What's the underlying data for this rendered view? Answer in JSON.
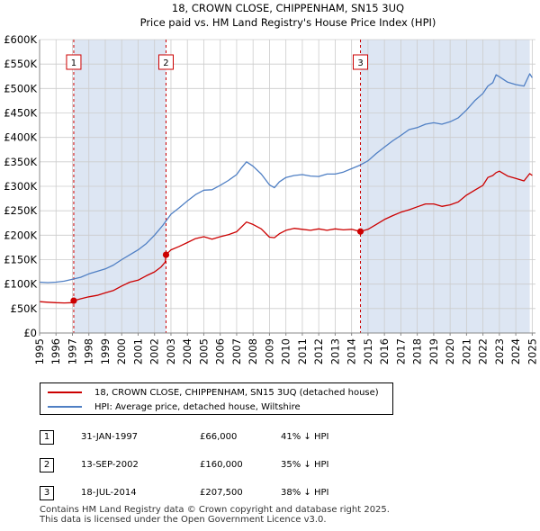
{
  "colors": {
    "price": "#cc0000",
    "hpi": "#4f7fc4",
    "band": "#dde6f3",
    "vline": "#cc0000",
    "grid": "#cccccc"
  },
  "chart_data": {
    "type": "line",
    "title": "18, CROWN CLOSE, CHIPPENHAM, SN15 3UQ",
    "subtitle": "Price paid vs. HM Land Registry's House Price Index (HPI)",
    "xlim": [
      1995,
      2025.2
    ],
    "ylim": [
      0,
      600000
    ],
    "x_ticks": [
      "1995",
      "1996",
      "1997",
      "1998",
      "1999",
      "2000",
      "2001",
      "2002",
      "2003",
      "2004",
      "2005",
      "2006",
      "2007",
      "2008",
      "2009",
      "2010",
      "2011",
      "2012",
      "2013",
      "2014",
      "2015",
      "2016",
      "2017",
      "2018",
      "2019",
      "2020",
      "2021",
      "2022",
      "2023",
      "2024",
      "2025"
    ],
    "y_ticks": [
      {
        "value": 0,
        "label": "£0"
      },
      {
        "value": 50000,
        "label": "£50K"
      },
      {
        "value": 100000,
        "label": "£100K"
      },
      {
        "value": 150000,
        "label": "£150K"
      },
      {
        "value": 200000,
        "label": "£200K"
      },
      {
        "value": 250000,
        "label": "£250K"
      },
      {
        "value": 300000,
        "label": "£300K"
      },
      {
        "value": 350000,
        "label": "£350K"
      },
      {
        "value": 400000,
        "label": "£400K"
      },
      {
        "value": 450000,
        "label": "£450K"
      },
      {
        "value": 500000,
        "label": "£500K"
      },
      {
        "value": 550000,
        "label": "£550K"
      },
      {
        "value": 600000,
        "label": "£600K"
      }
    ],
    "shaded_bands": [
      {
        "from": 1997.08,
        "to": 2002.7
      },
      {
        "from": 2014.54,
        "to": 2024.85
      }
    ],
    "sales": [
      {
        "label": "1",
        "x": 1997.08,
        "y": 66000
      },
      {
        "label": "2",
        "x": 2002.7,
        "y": 160000
      },
      {
        "label": "3",
        "x": 2014.54,
        "y": 207500
      }
    ],
    "series": [
      {
        "name": "18, CROWN CLOSE, CHIPPENHAM, SN15 3UQ (detached house)",
        "color": "#cc0000",
        "x": [
          1995,
          1995.5,
          1996,
          1996.5,
          1997.0,
          1997.08,
          1997.5,
          1998,
          1998.5,
          1999,
          1999.5,
          2000,
          2000.5,
          2001,
          2001.5,
          2002,
          2002.4,
          2002.65,
          2002.7,
          2003,
          2003.5,
          2004,
          2004.5,
          2005,
          2005.5,
          2006,
          2006.5,
          2007,
          2007.3,
          2007.6,
          2008,
          2008.5,
          2009,
          2009.3,
          2009.6,
          2010,
          2010.5,
          2011,
          2011.5,
          2012,
          2012.5,
          2013,
          2013.5,
          2014,
          2014.54,
          2015,
          2015.5,
          2016,
          2016.5,
          2017,
          2017.5,
          2018,
          2018.5,
          2019,
          2019.5,
          2020,
          2020.5,
          2021,
          2021.5,
          2022,
          2022.3,
          2022.6,
          2022.8,
          2023,
          2023.5,
          2024,
          2024.5,
          2024.85,
          2025
        ],
        "values": [
          64000,
          63000,
          62000,
          61500,
          62000,
          66000,
          70000,
          74000,
          77000,
          82000,
          87000,
          96000,
          104000,
          108000,
          117000,
          125000,
          135000,
          145000,
          160000,
          170000,
          177000,
          185000,
          193000,
          197000,
          192000,
          197000,
          201000,
          207000,
          217000,
          227000,
          222000,
          213000,
          196000,
          195000,
          203000,
          210000,
          214000,
          212000,
          210000,
          213000,
          210000,
          213000,
          211000,
          212000,
          207500,
          212000,
          222000,
          232000,
          240000,
          247000,
          252000,
          258000,
          264000,
          264000,
          259000,
          262000,
          268000,
          282000,
          292000,
          302000,
          318000,
          322000,
          328000,
          331000,
          321000,
          316000,
          311000,
          326000,
          322000
        ]
      },
      {
        "name": "HPI: Average price, detached house, Wiltshire",
        "color": "#4f7fc4",
        "x": [
          1995,
          1995.5,
          1996,
          1996.5,
          1997,
          1997.5,
          1998,
          1998.5,
          1999,
          1999.5,
          2000,
          2000.5,
          2001,
          2001.5,
          2002,
          2002.5,
          2003,
          2003.5,
          2004,
          2004.5,
          2005,
          2005.5,
          2006,
          2006.5,
          2007,
          2007.3,
          2007.6,
          2008,
          2008.5,
          2009,
          2009.3,
          2009.6,
          2010,
          2010.5,
          2011,
          2011.5,
          2012,
          2012.5,
          2013,
          2013.5,
          2014,
          2014.5,
          2015,
          2015.5,
          2016,
          2016.5,
          2017,
          2017.5,
          2018,
          2018.5,
          2019,
          2019.5,
          2020,
          2020.5,
          2021,
          2021.5,
          2022,
          2022.3,
          2022.6,
          2022.8,
          2023,
          2023.5,
          2024,
          2024.5,
          2024.85,
          2025
        ],
        "values": [
          104000,
          103000,
          104000,
          106000,
          110000,
          114000,
          121000,
          126000,
          131000,
          139000,
          150000,
          160000,
          170000,
          183000,
          200000,
          220000,
          243000,
          256000,
          270000,
          283000,
          292000,
          293000,
          302000,
          312000,
          324000,
          338000,
          350000,
          341000,
          325000,
          303000,
          297000,
          309000,
          318000,
          322000,
          324000,
          321000,
          320000,
          325000,
          325000,
          329000,
          336000,
          343000,
          352000,
          367000,
          380000,
          393000,
          404000,
          416000,
          420000,
          427000,
          430000,
          427000,
          432000,
          440000,
          456000,
          475000,
          490000,
          505000,
          512000,
          528000,
          524000,
          513000,
          508000,
          505000,
          530000,
          522000
        ]
      }
    ]
  },
  "legend": {
    "price": "18, CROWN CLOSE, CHIPPENHAM, SN15 3UQ (detached house)",
    "hpi": "HPI: Average price, detached house, Wiltshire"
  },
  "transactions": [
    {
      "num": "1",
      "date": "31-JAN-1997",
      "price": "£66,000",
      "delta": "41% ↓ HPI"
    },
    {
      "num": "2",
      "date": "13-SEP-2002",
      "price": "£160,000",
      "delta": "35% ↓ HPI"
    },
    {
      "num": "3",
      "date": "18-JUL-2014",
      "price": "£207,500",
      "delta": "38% ↓ HPI"
    }
  ],
  "footer": {
    "line1": "Contains HM Land Registry data © Crown copyright and database right 2025.",
    "line2": "This data is licensed under the Open Government Licence v3.0."
  }
}
